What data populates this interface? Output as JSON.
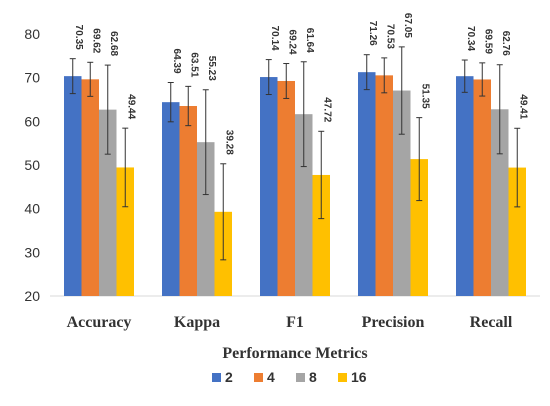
{
  "chart_data": {
    "type": "bar",
    "title": "",
    "xlabel": "Performance Metrics",
    "ylabel": "",
    "ylim": [
      20,
      80
    ],
    "yticks": [
      20,
      30,
      40,
      50,
      60,
      70,
      80
    ],
    "grid": false,
    "legend_position": "bottom",
    "categories": [
      "Accuracy",
      "Kappa",
      "F1",
      "Precision",
      "Recall"
    ],
    "series": [
      {
        "name": "2",
        "color": "#4472C4",
        "values": [
          70.35,
          64.39,
          70.14,
          71.26,
          70.34
        ],
        "error": [
          4.0,
          4.5,
          4.0,
          4.0,
          3.7
        ]
      },
      {
        "name": "4",
        "color": "#ED7D31",
        "values": [
          69.62,
          63.51,
          69.24,
          70.53,
          69.59
        ],
        "error": [
          3.9,
          4.5,
          4.0,
          4.0,
          3.8
        ]
      },
      {
        "name": "8",
        "color": "#A5A5A5",
        "values": [
          62.68,
          55.23,
          61.64,
          67.05,
          62.76
        ],
        "error": [
          10.2,
          12.0,
          12.0,
          10.0,
          10.2
        ]
      },
      {
        "name": "16",
        "color": "#FFC000",
        "values": [
          49.44,
          39.28,
          47.72,
          51.35,
          49.41
        ],
        "error": [
          9.0,
          11.0,
          10.0,
          9.5,
          9.0
        ]
      }
    ]
  }
}
